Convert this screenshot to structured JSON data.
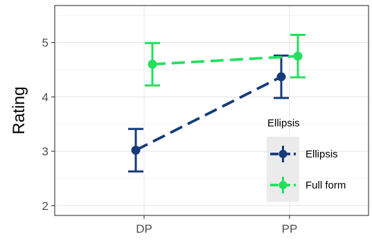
{
  "chart_data": {
    "type": "line",
    "xlabel": "",
    "ylabel": "Rating",
    "categories": [
      "DP",
      "PP"
    ],
    "ylim": [
      1.82,
      5.68
    ],
    "yticks": [
      2,
      3,
      4,
      5
    ],
    "grid": true,
    "legend": {
      "title": "Ellipsis",
      "position": "right-bottom",
      "entries": [
        "Ellipsis",
        "Full form"
      ]
    },
    "series": [
      {
        "name": "Ellipsis",
        "color": "#163a7a",
        "values": [
          3.02,
          4.37
        ],
        "err_low": [
          2.63,
          3.98
        ],
        "err_high": [
          3.41,
          4.76
        ],
        "dodge": -1
      },
      {
        "name": "Full form",
        "color": "#22e05e",
        "values": [
          4.6,
          4.75
        ],
        "err_low": [
          4.21,
          4.36
        ],
        "err_high": [
          4.99,
          5.14
        ],
        "dodge": 1
      }
    ]
  }
}
